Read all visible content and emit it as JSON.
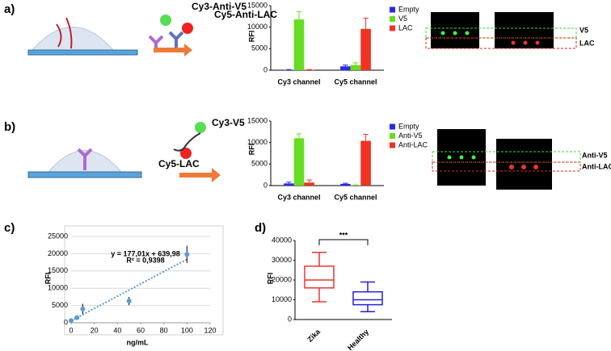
{
  "chart_data": [
    {
      "type": "bar",
      "panel": "a)",
      "reagents": [
        "Cy3-Anti-V5",
        "Cy5-Anti-LAC"
      ],
      "spot_labels": [
        "V5",
        "LAC"
      ],
      "ylabel": "RFI",
      "categories": [
        "Cy3 channel",
        "Cy5 channel"
      ],
      "ylim": [
        0,
        15000
      ],
      "yticks": [
        0,
        5000,
        10000,
        15000
      ],
      "series": [
        {
          "name": "Empty",
          "color": "#2a2ae6",
          "values": [
            100,
            900
          ],
          "errors": [
            50,
            300
          ]
        },
        {
          "name": "V5",
          "color": "#66dd22",
          "values": [
            11800,
            1200
          ],
          "errors": [
            1800,
            500
          ]
        },
        {
          "name": "LAC",
          "color": "#ee3322",
          "values": [
            100,
            9600
          ],
          "errors": [
            50,
            2500
          ]
        }
      ]
    },
    {
      "type": "bar",
      "panel": "b)",
      "reagents": [
        "Cy3-V5",
        "Cy5-LAC"
      ],
      "spot_labels": [
        "Anti-V5",
        "Anti-LAC"
      ],
      "ylabel": "RFI",
      "categories": [
        "Cy3 channel",
        "Cy5 channel"
      ],
      "ylim": [
        0,
        15000
      ],
      "yticks": [
        0,
        5000,
        10000,
        15000
      ],
      "series": [
        {
          "name": "Empty",
          "color": "#2a2ae6",
          "values": [
            500,
            400
          ],
          "errors": [
            300,
            150
          ]
        },
        {
          "name": "Anti-V5",
          "color": "#66dd22",
          "values": [
            11000,
            100
          ],
          "errors": [
            1000,
            50
          ]
        },
        {
          "name": "Anti-LAC",
          "color": "#ee3322",
          "values": [
            700,
            10400
          ],
          "errors": [
            600,
            1500
          ]
        }
      ]
    },
    {
      "type": "scatter",
      "panel": "c)",
      "xlabel": "ng/mL",
      "ylabel": "RFI",
      "grid": true,
      "color": "#5b9bd5",
      "annotation": [
        "y = 177,01x + 639,98",
        "R² = 0,9398"
      ],
      "x": [
        0,
        5,
        10,
        50,
        100
      ],
      "values": [
        600,
        1500,
        4000,
        6300,
        19800
      ],
      "errors": [
        200,
        300,
        1500,
        1200,
        2500
      ],
      "xlim": [
        0,
        120
      ],
      "xticks": [
        0,
        20,
        40,
        60,
        80,
        100,
        120
      ],
      "ylim": [
        0,
        25000
      ],
      "yticks": [
        0,
        5000,
        10000,
        15000,
        20000,
        25000
      ]
    },
    {
      "type": "box",
      "panel": "d)",
      "ylabel": "RFI",
      "significance": "***",
      "categories": [
        "Zika",
        "Healthy"
      ],
      "colors": [
        "#ee3333",
        "#2222dd"
      ],
      "min": [
        9000,
        4000
      ],
      "q1": [
        16000,
        7500
      ],
      "median": [
        20000,
        10000
      ],
      "q3": [
        27000,
        14000
      ],
      "max": [
        34000,
        19000
      ],
      "ylim": [
        0,
        40000
      ],
      "yticks": [
        0,
        10000,
        20000,
        30000,
        40000
      ]
    }
  ]
}
